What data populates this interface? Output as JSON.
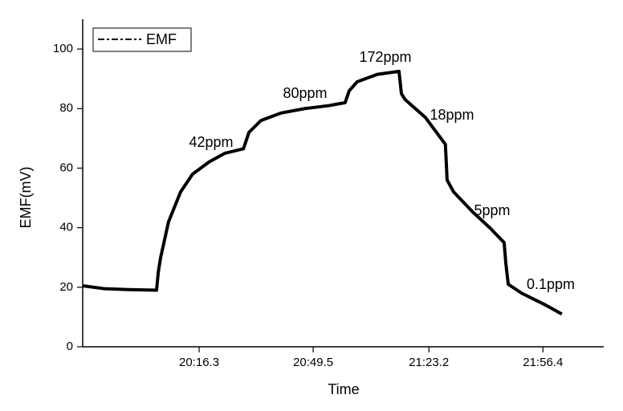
{
  "chart_data": {
    "type": "line",
    "x_label": "Time",
    "y_label": "EMF(mV)",
    "series": [
      {
        "name": "EMF",
        "color": "#000000",
        "x": [
          1182.4,
          1188.7,
          1195.7,
          1203.9,
          1204.4,
          1205.1,
          1207.4,
          1210.9,
          1214.4,
          1219.1,
          1223.8,
          1229.2,
          1230.8,
          1234.3,
          1240.1,
          1247.1,
          1254.1,
          1258.8,
          1260.0,
          1262.3,
          1268.2,
          1274.5,
          1275.2,
          1276.3,
          1282.2,
          1288.0,
          1288.5,
          1290.4,
          1296.2,
          1300.9,
          1305.1,
          1305.6,
          1306.3,
          1310.2,
          1317.2,
          1321.9
        ],
        "values": [
          20.5,
          19.5,
          19.2,
          19,
          25,
          30,
          42,
          52,
          58,
          62,
          65,
          66.5,
          72,
          76,
          78.5,
          80,
          81,
          82,
          86,
          89,
          91.5,
          92.5,
          85,
          83,
          77,
          68,
          56,
          52,
          45,
          40,
          35,
          28,
          21,
          18,
          14,
          11
        ]
      }
    ],
    "annotations": [
      "42ppm",
      "80ppm",
      "172ppm",
      "18ppm",
      "5ppm",
      "0.1ppm"
    ],
    "xlim": [
      1182.4,
      1334.1
    ],
    "xticks": [
      {
        "value": 1216.3,
        "label": "20:16.3"
      },
      {
        "value": 1249.5,
        "label": "20:49.5"
      },
      {
        "value": 1283.2,
        "label": "21:23.2"
      },
      {
        "value": 1316.4,
        "label": "21:56.4"
      }
    ],
    "ylim": [
      0,
      110
    ],
    "yticks": [
      0,
      20,
      40,
      60,
      80,
      100
    ],
    "grid": false,
    "legend": "upper left"
  }
}
